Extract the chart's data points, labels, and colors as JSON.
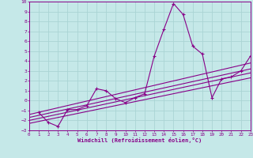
{
  "xlabel": "Windchill (Refroidissement éolien,°C)",
  "bg_color": "#c5e8e8",
  "line_color": "#880088",
  "grid_color": "#aad4d4",
  "xlim": [
    0,
    23
  ],
  "ylim": [
    -3,
    10
  ],
  "xticks": [
    0,
    1,
    2,
    3,
    4,
    5,
    6,
    7,
    8,
    9,
    10,
    11,
    12,
    13,
    14,
    15,
    16,
    17,
    18,
    19,
    20,
    21,
    22,
    23
  ],
  "yticks": [
    -3,
    -2,
    -1,
    0,
    1,
    2,
    3,
    4,
    5,
    6,
    7,
    8,
    9,
    10
  ],
  "series1_x": [
    1,
    2,
    3,
    4,
    5,
    6,
    7,
    8,
    9,
    10,
    11,
    12,
    13,
    14,
    15,
    16,
    17,
    18,
    19,
    20,
    21,
    22,
    23
  ],
  "series1_y": [
    -1.2,
    -2.2,
    -2.6,
    -0.9,
    -0.9,
    -0.5,
    1.2,
    1.0,
    0.2,
    -0.2,
    0.3,
    0.7,
    4.5,
    7.2,
    9.8,
    8.7,
    5.5,
    4.7,
    0.3,
    2.2,
    2.4,
    3.0,
    4.5
  ],
  "line1_x": [
    0,
    23
  ],
  "line1_y": [
    -2.3,
    2.3
  ],
  "line2_x": [
    0,
    23
  ],
  "line2_y": [
    -2.0,
    2.8
  ],
  "line3_x": [
    0,
    23
  ],
  "line3_y": [
    -1.7,
    3.2
  ],
  "line4_x": [
    0,
    23
  ],
  "line4_y": [
    -1.4,
    3.8
  ]
}
